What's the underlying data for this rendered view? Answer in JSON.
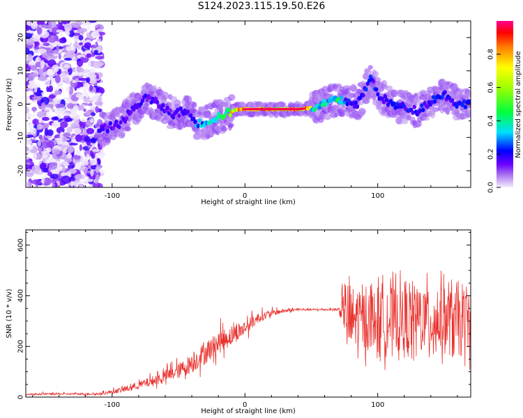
{
  "title": "S124.2023.115.19.50.E26",
  "chart_data": [
    {
      "type": "heatmap",
      "xlabel": "Height of straight line (km)",
      "ylabel": "Frequency (Hz)",
      "xlim": [
        -165,
        170
      ],
      "ylim": [
        -25,
        25
      ],
      "xticks": [
        -100,
        0,
        100
      ],
      "yticks": [
        -20,
        -10,
        0,
        10,
        20
      ],
      "colorbar": {
        "label": "Normalized spectral amplitude",
        "range": [
          0.0,
          1.0
        ],
        "ticks": [
          0.0,
          0.2,
          0.4,
          0.6,
          0.8
        ]
      },
      "ridge": {
        "x": [
          -110,
          -95,
          -85,
          -75,
          -65,
          -55,
          -45,
          -35,
          -28,
          -15,
          -5,
          5,
          20,
          40,
          55,
          65,
          75,
          85,
          95,
          100,
          110,
          120,
          130,
          140,
          150,
          160,
          165
        ],
        "y": [
          -8,
          -6,
          -2,
          2,
          0,
          -3,
          -2,
          -6,
          -5,
          -3,
          -1.5,
          -1.5,
          -1.5,
          -1.5,
          -1,
          1,
          1,
          0,
          8,
          3,
          0,
          -1,
          -2,
          1,
          3,
          0,
          0
        ]
      }
    },
    {
      "type": "line",
      "xlabel": "Height of straight line (km)",
      "ylabel": "SNR (10 * v/v)",
      "xlim": [
        -165,
        170
      ],
      "ylim": [
        0,
        660
      ],
      "xticks": [
        -100,
        0,
        100
      ],
      "yticks": [
        0,
        200,
        400,
        600
      ],
      "color": "#e8322e",
      "x": [
        -165,
        -150,
        -130,
        -110,
        -100,
        -90,
        -80,
        -70,
        -60,
        -50,
        -40,
        -30,
        -20,
        -10,
        0,
        10,
        20,
        30,
        40,
        50,
        60,
        70,
        75,
        80,
        90,
        100,
        110,
        120,
        130,
        140,
        150,
        160,
        170
      ],
      "y": [
        10,
        12,
        12,
        12,
        20,
        30,
        45,
        60,
        80,
        100,
        130,
        170,
        210,
        240,
        270,
        310,
        330,
        340,
        345,
        345,
        345,
        345,
        330,
        300,
        310,
        300,
        310,
        300,
        310,
        300,
        310,
        300,
        300
      ],
      "noise": [
        5,
        8,
        8,
        8,
        15,
        25,
        30,
        40,
        50,
        60,
        80,
        90,
        90,
        80,
        60,
        40,
        25,
        15,
        10,
        8,
        8,
        10,
        150,
        160,
        160,
        170,
        170,
        170,
        170,
        170,
        170,
        170,
        170
      ]
    }
  ]
}
